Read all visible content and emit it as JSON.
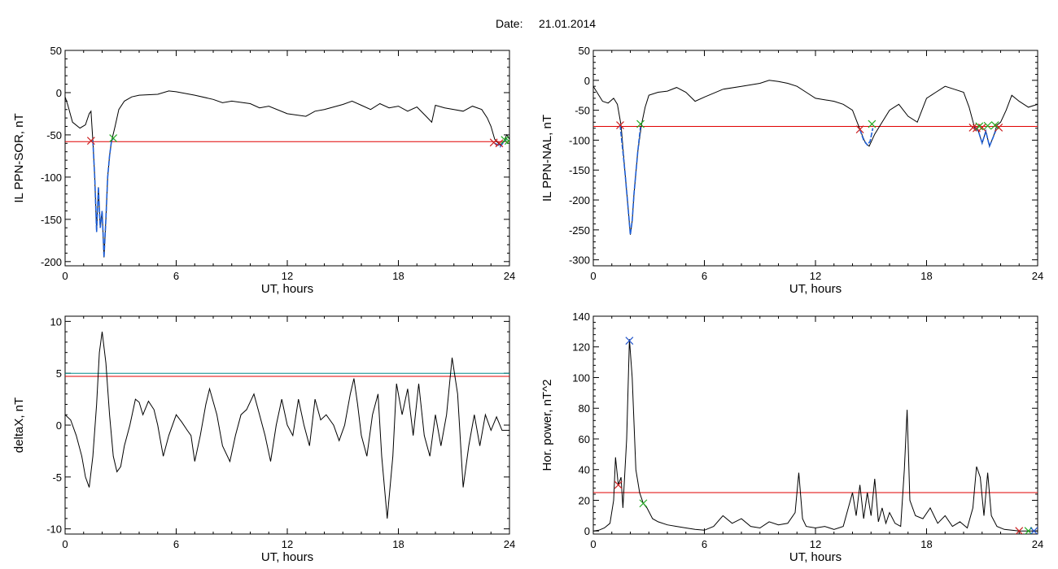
{
  "header": {
    "date_label": "Date:",
    "date_value": "21.01.2014"
  },
  "colors": {
    "signal": "#000000",
    "event": "#1f5fd6",
    "threshold_red": "#e00000",
    "threshold_teal": "#008c8c",
    "start_marker": "#cc2222",
    "end_marker": "#22aa22",
    "peak_marker": "#2255cc"
  },
  "chart_data": [
    {
      "type": "line",
      "id": "sor",
      "title": "",
      "xlabel": "UT, hours",
      "ylabel": "IL PPN-SOR, nT",
      "xlim": [
        0,
        24
      ],
      "ylim": [
        -205,
        50
      ],
      "xticks": [
        0,
        6,
        12,
        18,
        24
      ],
      "yticks": [
        50,
        0,
        -50,
        -100,
        -150,
        -200
      ],
      "grid": false,
      "thresholds": [
        {
          "value": -58,
          "color": "red"
        }
      ],
      "series": [
        {
          "role": "signal",
          "x": [
            0,
            0.15,
            0.4,
            0.8,
            1.1,
            1.3,
            1.4,
            1.5,
            1.6,
            1.7,
            1.8,
            1.9,
            2.0,
            2.1,
            2.2,
            2.3,
            2.4,
            2.5,
            2.7,
            2.9,
            3.2,
            3.6,
            4.0,
            5.0,
            5.6,
            6.0,
            7.0,
            8.0,
            8.5,
            9.0,
            10.0,
            10.5,
            11.0,
            12.0,
            13.0,
            13.5,
            14.0,
            15.0,
            15.5,
            16.0,
            16.5,
            17.0,
            17.5,
            18.0,
            18.5,
            19.0,
            19.5,
            19.8,
            20.0,
            20.5,
            21.0,
            21.5,
            22.0,
            22.5,
            22.8,
            23.0,
            23.2,
            23.4,
            23.5,
            23.7,
            23.85,
            24.0
          ],
          "y": [
            -5,
            -15,
            -35,
            -42,
            -38,
            -25,
            -22,
            -57,
            -100,
            -165,
            -112,
            -160,
            -140,
            -195,
            -150,
            -100,
            -75,
            -58,
            -40,
            -20,
            -10,
            -5,
            -3,
            -2,
            2,
            1,
            -3,
            -8,
            -12,
            -10,
            -13,
            -18,
            -16,
            -25,
            -28,
            -22,
            -20,
            -14,
            -10,
            -15,
            -20,
            -13,
            -18,
            -16,
            -22,
            -17,
            -28,
            -35,
            -15,
            -18,
            -20,
            -22,
            -16,
            -20,
            -30,
            -40,
            -55,
            -60,
            -62,
            -58,
            -50,
            -55
          ]
        },
        {
          "role": "event",
          "x": [
            1.5,
            1.6,
            1.7,
            1.8,
            1.9,
            2.0,
            2.1,
            2.2,
            2.3,
            2.4,
            2.5,
            2.6
          ],
          "y": [
            -57,
            -100,
            -165,
            -112,
            -160,
            -140,
            -195,
            -150,
            -100,
            -75,
            -58,
            -54
          ]
        },
        {
          "role": "event",
          "x": [
            23.2,
            23.4,
            23.5,
            23.7,
            23.85
          ],
          "y": [
            -60,
            -62,
            -64,
            -58,
            -55
          ]
        }
      ],
      "markers": [
        {
          "kind": "start",
          "x": 1.4,
          "y": -57
        },
        {
          "kind": "end",
          "x": 2.6,
          "y": -54
        },
        {
          "kind": "start",
          "x": 23.15,
          "y": -59
        },
        {
          "kind": "start",
          "x": 23.45,
          "y": -60
        },
        {
          "kind": "end",
          "x": 23.75,
          "y": -56
        },
        {
          "kind": "end",
          "x": 23.95,
          "y": -57
        }
      ]
    },
    {
      "type": "line",
      "id": "nal",
      "title": "",
      "xlabel": "UT, hours",
      "ylabel": "IL PPN-NAL, nT",
      "xlim": [
        0,
        24
      ],
      "ylim": [
        -310,
        50
      ],
      "xticks": [
        0,
        6,
        12,
        18,
        24
      ],
      "yticks": [
        50,
        0,
        -50,
        -100,
        -150,
        -200,
        -250,
        -300
      ],
      "grid": false,
      "thresholds": [
        {
          "value": -77,
          "color": "red"
        }
      ],
      "series": [
        {
          "role": "signal",
          "x": [
            0,
            0.2,
            0.5,
            0.8,
            1.1,
            1.3,
            1.5,
            1.7,
            1.9,
            2.0,
            2.1,
            2.2,
            2.4,
            2.6,
            2.8,
            3.0,
            3.5,
            4.0,
            4.5,
            5.0,
            5.5,
            6.0,
            7.0,
            8.0,
            9.0,
            9.5,
            10.0,
            10.5,
            11.0,
            11.5,
            12.0,
            13.0,
            13.5,
            14.0,
            14.5,
            14.7,
            14.9,
            15.2,
            15.5,
            16.0,
            16.5,
            17.0,
            17.5,
            18.0,
            18.5,
            19.0,
            19.5,
            20.0,
            20.3,
            20.6,
            20.8,
            21.0,
            21.2,
            21.4,
            21.6,
            21.8,
            22.0,
            22.3,
            22.6,
            23.0,
            23.5,
            24.0
          ],
          "y": [
            -10,
            -20,
            -35,
            -38,
            -30,
            -40,
            -75,
            -150,
            -220,
            -258,
            -235,
            -190,
            -120,
            -75,
            -45,
            -25,
            -20,
            -18,
            -12,
            -20,
            -35,
            -28,
            -15,
            -10,
            -5,
            0,
            -2,
            -5,
            -10,
            -20,
            -30,
            -35,
            -40,
            -50,
            -90,
            -105,
            -110,
            -90,
            -75,
            -50,
            -40,
            -60,
            -70,
            -30,
            -20,
            -10,
            -15,
            -20,
            -45,
            -80,
            -85,
            -105,
            -85,
            -110,
            -95,
            -75,
            -70,
            -50,
            -25,
            -35,
            -45,
            -40
          ]
        },
        {
          "role": "event",
          "x": [
            1.45,
            1.7,
            1.9,
            2.0,
            2.1,
            2.2,
            2.4,
            2.55
          ],
          "y": [
            -75,
            -150,
            -220,
            -258,
            -235,
            -190,
            -120,
            -78
          ]
        },
        {
          "role": "event",
          "x": [
            14.4,
            14.6,
            14.8,
            14.95,
            15.1
          ],
          "y": [
            -82,
            -100,
            -108,
            -102,
            -80
          ]
        },
        {
          "role": "event",
          "x": [
            20.6,
            20.8,
            21.0,
            21.2,
            21.4,
            21.6,
            21.8
          ],
          "y": [
            -79,
            -85,
            -105,
            -85,
            -110,
            -95,
            -79
          ]
        }
      ],
      "markers": [
        {
          "kind": "start",
          "x": 1.45,
          "y": -75
        },
        {
          "kind": "end",
          "x": 2.55,
          "y": -73
        },
        {
          "kind": "start",
          "x": 14.4,
          "y": -82
        },
        {
          "kind": "end",
          "x": 15.05,
          "y": -73
        },
        {
          "kind": "start",
          "x": 20.5,
          "y": -79
        },
        {
          "kind": "start",
          "x": 20.7,
          "y": -80
        },
        {
          "kind": "start",
          "x": 21.0,
          "y": -79
        },
        {
          "kind": "end",
          "x": 20.85,
          "y": -77
        },
        {
          "kind": "end",
          "x": 21.3,
          "y": -76
        },
        {
          "kind": "start",
          "x": 21.9,
          "y": -79
        },
        {
          "kind": "end",
          "x": 21.7,
          "y": -75
        }
      ]
    },
    {
      "type": "line",
      "id": "deltax",
      "title": "",
      "xlabel": "UT, hours",
      "ylabel": "deltaX, nT",
      "xlim": [
        0,
        24
      ],
      "ylim": [
        -10.5,
        10.5
      ],
      "xticks": [
        0,
        6,
        12,
        18,
        24
      ],
      "yticks": [
        10,
        5,
        0,
        -5,
        -10
      ],
      "ytick_labels": [
        "10",
        "5",
        "0",
        "-5",
        "-10"
      ],
      "grid": false,
      "thresholds": [
        {
          "value": 5.0,
          "color": "teal"
        },
        {
          "value": 4.7,
          "color": "red"
        }
      ],
      "series": [
        {
          "role": "signal",
          "x": [
            0,
            0.3,
            0.6,
            0.9,
            1.1,
            1.3,
            1.5,
            1.7,
            1.85,
            2.0,
            2.2,
            2.4,
            2.6,
            2.8,
            3.0,
            3.2,
            3.5,
            3.8,
            4.0,
            4.2,
            4.5,
            4.8,
            5.0,
            5.3,
            5.6,
            6.0,
            6.3,
            6.6,
            6.8,
            7.0,
            7.3,
            7.6,
            7.8,
            8.2,
            8.5,
            8.9,
            9.2,
            9.5,
            9.8,
            10.2,
            10.5,
            10.8,
            11.1,
            11.4,
            11.7,
            12.0,
            12.3,
            12.6,
            12.9,
            13.2,
            13.5,
            13.8,
            14.1,
            14.5,
            14.8,
            15.1,
            15.4,
            15.6,
            15.8,
            16.0,
            16.3,
            16.6,
            16.9,
            17.1,
            17.4,
            17.7,
            17.9,
            18.2,
            18.5,
            18.8,
            19.1,
            19.4,
            19.7,
            20.0,
            20.3,
            20.6,
            20.9,
            21.2,
            21.5,
            21.8,
            22.1,
            22.4,
            22.7,
            23.0,
            23.3,
            23.6,
            24.0
          ],
          "y": [
            1,
            0.5,
            -1,
            -3,
            -5,
            -6,
            -3,
            2,
            7,
            9,
            6,
            1,
            -3,
            -4.5,
            -4,
            -2,
            0,
            2.5,
            2.2,
            1,
            2.3,
            1.5,
            0,
            -3,
            -1,
            1,
            0.3,
            -0.5,
            -1,
            -3.5,
            -1,
            2,
            3.5,
            1,
            -2,
            -3.5,
            -1,
            1,
            1.5,
            3,
            1,
            -1,
            -3.5,
            0,
            2.5,
            0,
            -1,
            2.5,
            0,
            -2,
            2.5,
            0.5,
            1,
            0,
            -1.5,
            0,
            3,
            4.5,
            2,
            -1,
            -3,
            1,
            3,
            -3,
            -9,
            -3,
            4,
            1,
            3.5,
            -1,
            4,
            -1,
            -3,
            1,
            -2,
            1,
            6.5,
            3,
            -6,
            -2,
            1,
            -2,
            1,
            -0.5,
            0.8,
            -0.5,
            -0.5
          ]
        }
      ],
      "markers": []
    },
    {
      "type": "line",
      "id": "power",
      "title": "",
      "xlabel": "UT, hours",
      "ylabel": "Hor. power, nT^2",
      "xlim": [
        0,
        24
      ],
      "ylim": [
        -2,
        140
      ],
      "xticks": [
        0,
        6,
        12,
        18,
        24
      ],
      "yticks": [
        140,
        120,
        100,
        80,
        60,
        40,
        20,
        0
      ],
      "grid": false,
      "thresholds": [
        {
          "value": 25,
          "color": "red"
        }
      ],
      "series": [
        {
          "role": "signal",
          "x": [
            0,
            0.3,
            0.6,
            0.9,
            1.1,
            1.2,
            1.35,
            1.5,
            1.6,
            1.8,
            1.95,
            2.1,
            2.3,
            2.5,
            2.7,
            2.9,
            3.2,
            3.5,
            4.0,
            4.5,
            5.0,
            5.5,
            6.0,
            6.5,
            7.0,
            7.5,
            8.0,
            8.5,
            9.0,
            9.5,
            10.0,
            10.5,
            10.9,
            11.1,
            11.3,
            11.5,
            12.0,
            12.5,
            13.0,
            13.5,
            14.0,
            14.2,
            14.4,
            14.6,
            14.8,
            15.0,
            15.2,
            15.4,
            15.6,
            15.8,
            16.0,
            16.3,
            16.6,
            16.8,
            16.95,
            17.1,
            17.4,
            17.8,
            18.2,
            18.6,
            19.0,
            19.4,
            19.8,
            20.2,
            20.5,
            20.7,
            20.9,
            21.1,
            21.3,
            21.5,
            21.8,
            22.2,
            22.6,
            23.0,
            23.5,
            24.0
          ],
          "y": [
            0,
            0.5,
            2,
            5,
            20,
            48,
            30,
            35,
            15,
            60,
            125,
            100,
            40,
            25,
            18,
            15,
            8,
            6,
            4,
            3,
            2,
            1,
            0.5,
            3,
            10,
            5,
            8,
            3,
            2,
            6,
            4,
            5,
            12,
            38,
            8,
            3,
            2,
            3,
            1,
            3,
            25,
            10,
            30,
            8,
            25,
            10,
            34,
            6,
            15,
            5,
            12,
            5,
            3,
            40,
            79,
            20,
            10,
            8,
            15,
            5,
            10,
            3,
            6,
            2,
            15,
            42,
            35,
            10,
            38,
            10,
            3,
            1,
            0.5,
            0,
            0,
            0
          ]
        }
      ],
      "markers": [
        {
          "kind": "start",
          "x": 1.35,
          "y": 30
        },
        {
          "kind": "peak",
          "x": 1.95,
          "y": 124
        },
        {
          "kind": "end",
          "x": 2.7,
          "y": 18
        },
        {
          "kind": "start",
          "x": 23.0,
          "y": 0
        },
        {
          "kind": "end",
          "x": 23.5,
          "y": 0
        },
        {
          "kind": "peak",
          "x": 23.8,
          "y": 0
        }
      ]
    }
  ]
}
